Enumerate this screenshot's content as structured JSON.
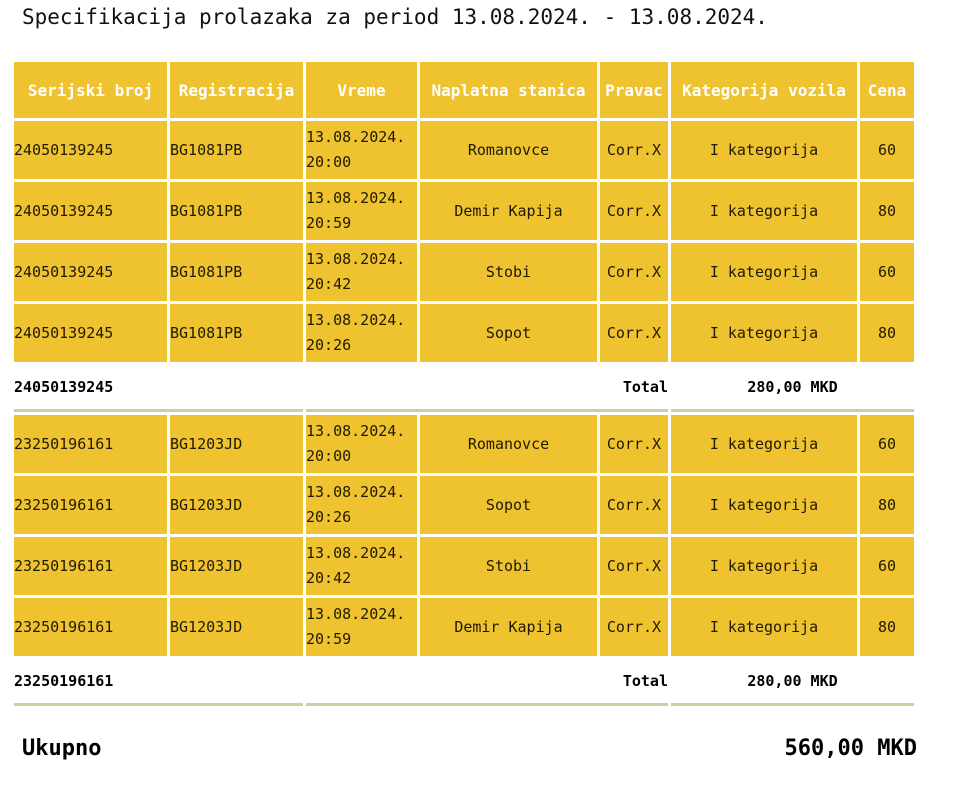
{
  "title": "Specifikacija prolazaka za period 13.08.2024. - 13.08.2024.",
  "colors": {
    "cell_yellow": "#efc32f",
    "header_text": "#ffffff",
    "body_text": "#201a02",
    "total_divider": "#cbd0a2",
    "background": "#ffffff"
  },
  "columns": [
    "Serijski broj",
    "Registracija",
    "Vreme",
    "Naplatna stanica",
    "Pravac",
    "Kategorija vozila",
    "Cena"
  ],
  "groups": [
    {
      "rows": [
        {
          "serial": "24050139245",
          "registration": "BG1081PB",
          "date": "13.08.2024.",
          "time": "20:00",
          "station": "Romanovce",
          "direction": "Corr.X",
          "category": "I kategorija",
          "price": "60"
        },
        {
          "serial": "24050139245",
          "registration": "BG1081PB",
          "date": "13.08.2024.",
          "time": "20:59",
          "station": "Demir Kapija",
          "direction": "Corr.X",
          "category": "I kategorija",
          "price": "80"
        },
        {
          "serial": "24050139245",
          "registration": "BG1081PB",
          "date": "13.08.2024.",
          "time": "20:42",
          "station": "Stobi",
          "direction": "Corr.X",
          "category": "I kategorija",
          "price": "60"
        },
        {
          "serial": "24050139245",
          "registration": "BG1081PB",
          "date": "13.08.2024.",
          "time": "20:26",
          "station": "Sopot",
          "direction": "Corr.X",
          "category": "I kategorija",
          "price": "80"
        }
      ],
      "total": {
        "serial": "24050139245",
        "label": "Total",
        "amount": "280,00 MKD"
      }
    },
    {
      "rows": [
        {
          "serial": "23250196161",
          "registration": "BG1203JD",
          "date": "13.08.2024.",
          "time": "20:00",
          "station": "Romanovce",
          "direction": "Corr.X",
          "category": "I kategorija",
          "price": "60"
        },
        {
          "serial": "23250196161",
          "registration": "BG1203JD",
          "date": "13.08.2024.",
          "time": "20:26",
          "station": "Sopot",
          "direction": "Corr.X",
          "category": "I kategorija",
          "price": "80"
        },
        {
          "serial": "23250196161",
          "registration": "BG1203JD",
          "date": "13.08.2024.",
          "time": "20:42",
          "station": "Stobi",
          "direction": "Corr.X",
          "category": "I kategorija",
          "price": "60"
        },
        {
          "serial": "23250196161",
          "registration": "BG1203JD",
          "date": "13.08.2024.",
          "time": "20:59",
          "station": "Demir Kapija",
          "direction": "Corr.X",
          "category": "I kategorija",
          "price": "80"
        }
      ],
      "total": {
        "serial": "23250196161",
        "label": "Total",
        "amount": "280,00 MKD"
      }
    }
  ],
  "grand_total": {
    "label": "Ukupno",
    "amount": "560,00 MKD"
  }
}
